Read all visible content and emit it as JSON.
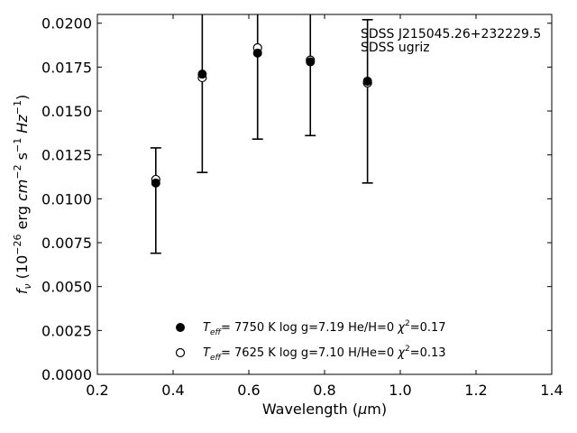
{
  "chart_data": {
    "type": "scatter",
    "xlabel_parts": [
      "Wavelength (",
      "μ",
      "m)"
    ],
    "ylabel_parts": {
      "f": "f",
      "nu": "ν",
      "open": " (10",
      "exp1": "−26",
      "erg": " erg ",
      "cm": "cm",
      "exp2": "−2",
      "s": " s",
      "exp3": "−1",
      "hz": " Hz",
      "exp4": "−1",
      "close": ")"
    },
    "xlim": [
      0.2,
      1.4
    ],
    "ylim": [
      0.0,
      0.0205
    ],
    "xticks": [
      "0.2",
      "0.4",
      "0.6",
      "0.8",
      "1.0",
      "1.2",
      "1.4"
    ],
    "yticks": [
      "0.0000",
      "0.0025",
      "0.0050",
      "0.0075",
      "0.0100",
      "0.0125",
      "0.0150",
      "0.0175",
      "0.0200"
    ],
    "annotations": [
      "SDSS J215045.26+232229.5",
      "SDSS ugriz"
    ],
    "observed": {
      "x": [
        0.3543,
        0.477,
        0.6231,
        0.7625,
        0.9134
      ],
      "y": [
        0.0109,
        0.0171,
        0.0183,
        0.0178,
        0.0167
      ],
      "err_low": [
        0.0069,
        0.0115,
        0.0134,
        0.0136,
        0.0109
      ],
      "err_high": [
        0.0129,
        0.023,
        0.023,
        0.023,
        0.0202
      ]
    },
    "series": [
      {
        "marker": "filled-circle",
        "x": [
          0.3543,
          0.477,
          0.6231,
          0.7625,
          0.9134
        ],
        "y": [
          0.0109,
          0.0171,
          0.0183,
          0.0178,
          0.0167
        ],
        "label": {
          "t": "T",
          "eff": "eff",
          "val": "=  7750 K  log g=7.19  He/H=0  ",
          "chi": "χ",
          "sq": "2",
          "fit": "=0.17"
        }
      },
      {
        "marker": "open-circle",
        "x": [
          0.3543,
          0.477,
          0.6231,
          0.7625,
          0.9134
        ],
        "y": [
          0.0111,
          0.0169,
          0.0186,
          0.0179,
          0.0166
        ],
        "label": {
          "t": "T",
          "eff": "eff",
          "val": "=  7625 K  log g=7.10  H/He=0  ",
          "chi": "χ",
          "sq": "2",
          "fit": "=0.13"
        }
      }
    ],
    "legend_position": "lower-center",
    "grid": false
  }
}
